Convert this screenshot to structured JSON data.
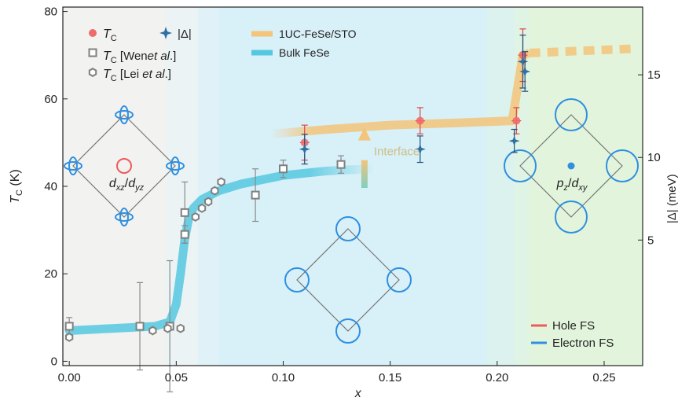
{
  "chart_data": {
    "type": "scatter",
    "xlabel": "x",
    "ylabel_left": {
      "main": "T",
      "sub": "C",
      "unit": " (K)"
    },
    "ylabel_right": "|Δ| (meV)",
    "xlim": [
      -0.003,
      0.268
    ],
    "ylim_left": [
      -1,
      81
    ],
    "ylim_right": [
      -2.6,
      19.1
    ],
    "x_ticks": [
      0.0,
      0.05,
      0.1,
      0.15,
      0.2,
      0.25
    ],
    "x_tick_labels": [
      "0.00",
      "0.05",
      "0.10",
      "0.15",
      "0.20",
      "0.25"
    ],
    "y_left_ticks": [
      0,
      20,
      40,
      60,
      80
    ],
    "y_left_tick_labels": [
      "0",
      "20",
      "40",
      "60",
      "80"
    ],
    "y_right_ticks": [
      5,
      10,
      15
    ],
    "y_right_tick_labels": [
      "5",
      "10",
      "15"
    ],
    "background_regions": [
      {
        "from": -0.003,
        "to": 0.06,
        "color": "#f2f2f0"
      },
      {
        "from": 0.06,
        "to": 0.208,
        "color": "#d8f0f8"
      },
      {
        "from": 0.208,
        "to": 0.268,
        "color": "#e2f5dc"
      }
    ],
    "colors": {
      "tc": "#ef6b6b",
      "gap": "#2f6fa3",
      "wen": "#808080",
      "lei": "#808080",
      "film": "#f3c47a",
      "bulk": "#55c8e0",
      "hole": "#ef5a5a",
      "electron": "#2f8fe0"
    },
    "legend": {
      "tc": {
        "main": "T",
        "sub": "C",
        "extra": ""
      },
      "gap": "|Δ|",
      "wen": {
        "main": "T",
        "sub": "C",
        "extra": " [Wen",
        "ital": "et al",
        "end": ".]"
      },
      "lei": {
        "main": "T",
        "sub": "C",
        "extra": " [Lei ",
        "ital": "et al",
        "end": ".]"
      },
      "film": "1UC-FeSe/STO",
      "bulk": "Bulk FeSe"
    },
    "fs_legend": {
      "hole": "Hole FS",
      "electron": "Electron FS"
    },
    "annotation_interface": "Interface",
    "orbital_labels": {
      "left": {
        "a": "d",
        "asub": "xz",
        "sep": "/",
        "b": "d",
        "bsub": "yz"
      },
      "right": {
        "a": "p",
        "asub": "z",
        "sep": "/",
        "b": "d",
        "bsub": "xy"
      }
    },
    "series": {
      "wen_tc": {
        "x": [
          0.0,
          0.033,
          0.047,
          0.054,
          0.054,
          0.087,
          0.1,
          0.127
        ],
        "y": [
          8,
          8,
          8,
          34,
          29,
          38,
          44,
          45
        ],
        "err": [
          2,
          10,
          15,
          7,
          2,
          6,
          2,
          2
        ]
      },
      "lei_tc": {
        "x": [
          0.0,
          0.039,
          0.046,
          0.052,
          0.059,
          0.062,
          0.065,
          0.068,
          0.071
        ],
        "y": [
          5.5,
          7,
          7.5,
          7.5,
          33,
          35,
          36.5,
          39,
          41
        ]
      },
      "tc": {
        "x": [
          0.11,
          0.164,
          0.209,
          0.212
        ],
        "y": [
          50,
          55,
          55,
          70
        ],
        "err": [
          4,
          3,
          3,
          6
        ]
      },
      "gap": {
        "x": [
          0.11,
          0.164,
          0.208,
          0.212,
          0.213
        ],
        "y": [
          10.5,
          10.5,
          11.0,
          15.8,
          15.2
        ],
        "err": [
          0.9,
          0.8,
          0.7,
          1.6,
          1.2
        ]
      },
      "bulk_curve": {
        "x": [
          0.0,
          0.02,
          0.04,
          0.047,
          0.05,
          0.052,
          0.054,
          0.056,
          0.058,
          0.062,
          0.07,
          0.08,
          0.1,
          0.12,
          0.14
        ],
        "y": [
          7,
          7.5,
          8,
          9,
          13,
          20,
          28,
          33,
          35,
          37,
          39,
          40.5,
          42.5,
          43.5,
          44
        ]
      },
      "film_curve": {
        "x": [
          0.095,
          0.12,
          0.15,
          0.18,
          0.207,
          0.212,
          0.215,
          0.24,
          0.265
        ],
        "y": [
          52,
          53,
          54,
          54.5,
          55,
          70,
          70.5,
          71,
          71.5
        ]
      }
    }
  }
}
